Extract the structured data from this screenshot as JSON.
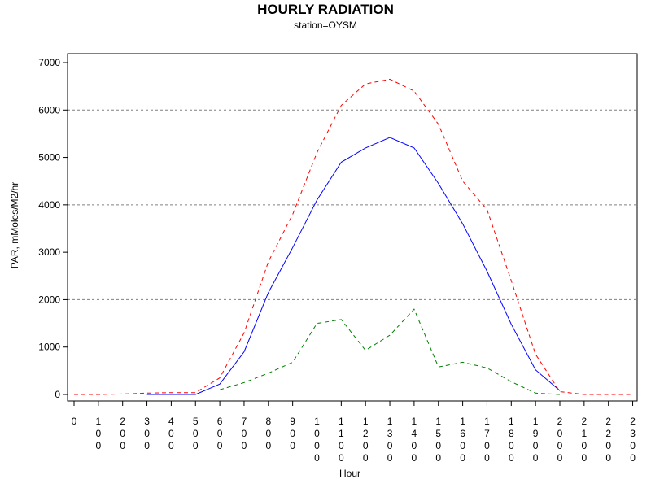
{
  "chart_data": {
    "type": "line",
    "title": "HOURLY RADIATION",
    "subtitle": "station=OYSM",
    "xlabel": "Hour",
    "ylabel": "PAR, mMoles/M2/hr",
    "ylim": [
      0,
      7000
    ],
    "yticks": [
      0,
      1000,
      2000,
      3000,
      4000,
      5000,
      6000,
      7000
    ],
    "grid_y": [
      2000,
      4000,
      6000
    ],
    "categories": [
      "0",
      "100",
      "200",
      "300",
      "400",
      "500",
      "600",
      "700",
      "800",
      "900",
      "1000",
      "1100",
      "1200",
      "1300",
      "1400",
      "1500",
      "1600",
      "1700",
      "1800",
      "1900",
      "2000",
      "2100",
      "2200",
      "2300"
    ],
    "series": [
      {
        "style": "solid",
        "color": "#0000ff",
        "points": [
          [
            3,
            0
          ],
          [
            4,
            0
          ],
          [
            5,
            0
          ],
          [
            6,
            220
          ],
          [
            7,
            900
          ],
          [
            8,
            2150
          ],
          [
            9,
            3100
          ],
          [
            10,
            4100
          ],
          [
            11,
            4900
          ],
          [
            12,
            5200
          ],
          [
            13,
            5420
          ],
          [
            14,
            5200
          ],
          [
            15,
            4450
          ],
          [
            16,
            3600
          ],
          [
            17,
            2600
          ],
          [
            18,
            1480
          ],
          [
            19,
            520
          ],
          [
            20,
            80
          ]
        ]
      },
      {
        "style": "dashed",
        "color": "#ff0000",
        "points": [
          [
            0,
            0
          ],
          [
            1,
            0
          ],
          [
            2,
            10
          ],
          [
            3,
            30
          ],
          [
            4,
            40
          ],
          [
            5,
            40
          ],
          [
            6,
            350
          ],
          [
            7,
            1300
          ],
          [
            8,
            2800
          ],
          [
            9,
            3800
          ],
          [
            10,
            5100
          ],
          [
            11,
            6100
          ],
          [
            12,
            6550
          ],
          [
            13,
            6650
          ],
          [
            14,
            6400
          ],
          [
            15,
            5700
          ],
          [
            16,
            4500
          ],
          [
            17,
            3900
          ],
          [
            18,
            2400
          ],
          [
            19,
            850
          ],
          [
            20,
            60
          ],
          [
            21,
            0
          ],
          [
            22,
            0
          ],
          [
            23,
            0
          ]
        ]
      },
      {
        "style": "dashed",
        "color": "#008000",
        "points": [
          [
            6,
            100
          ],
          [
            7,
            250
          ],
          [
            8,
            450
          ],
          [
            9,
            680
          ],
          [
            10,
            1500
          ],
          [
            11,
            1580
          ],
          [
            12,
            930
          ],
          [
            13,
            1250
          ],
          [
            14,
            1800
          ],
          [
            15,
            580
          ],
          [
            16,
            680
          ],
          [
            17,
            560
          ],
          [
            18,
            270
          ],
          [
            19,
            30
          ],
          [
            20,
            0
          ]
        ]
      }
    ]
  }
}
